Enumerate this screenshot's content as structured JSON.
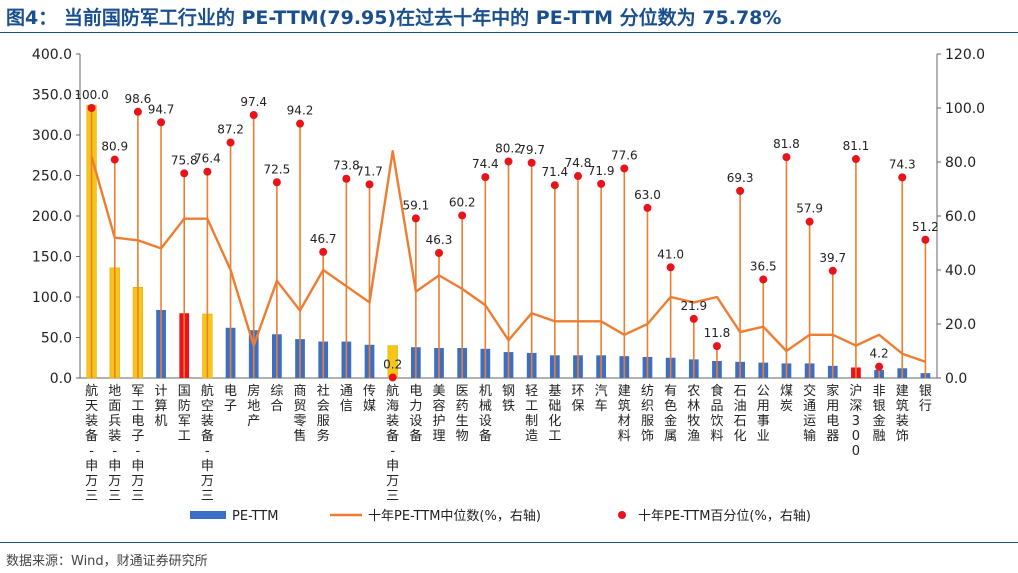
{
  "title": "图4： 当前国防军工行业的 PE-TTM(79.95)在过去十年中的 PE-TTM 分位数为 75.78%",
  "source": "数据来源：Wind，财通证券研究所",
  "colors": {
    "bar_default": "#3b6fc4",
    "bar_gold": "#f5c518",
    "bar_red": "#e8141a",
    "line": "#ed7d31",
    "dot": "#e8141a",
    "title": "#1a4f8f"
  },
  "chart_data": {
    "type": "bar",
    "categories": [
      "航天装备-申万三",
      "地面兵装-申万三",
      "军工电子-申万三",
      "计算机",
      "国防军工",
      "航空装备-申万三",
      "电子",
      "房地产",
      "综合",
      "商贸零售",
      "社会服务",
      "通信",
      "传媒",
      "航海装备-申万三",
      "电力设备",
      "美容护理",
      "医药生物",
      "机械设备",
      "钢铁",
      "轻工制造",
      "基础化工",
      "环保",
      "汽车",
      "建筑材料",
      "纺织服饰",
      "有色金属",
      "农林牧渔",
      "食品饮料",
      "石油石化",
      "公用事业",
      "煤炭",
      "交通运输",
      "家用电器",
      "沪深300",
      "非银金融",
      "建筑装饰",
      "银行"
    ],
    "bar_colors": [
      "gold",
      "gold",
      "gold",
      "default",
      "red",
      "gold",
      "default",
      "default",
      "default",
      "default",
      "default",
      "default",
      "default",
      "gold",
      "default",
      "default",
      "default",
      "default",
      "default",
      "default",
      "default",
      "default",
      "default",
      "default",
      "default",
      "default",
      "default",
      "default",
      "default",
      "default",
      "default",
      "default",
      "default",
      "red",
      "default",
      "default",
      "default"
    ],
    "series": [
      {
        "name": "PE-TTM",
        "axis": "left",
        "type": "bar",
        "values": [
          337,
          136,
          112,
          84,
          79.95,
          79,
          62,
          59,
          54,
          48,
          45,
          45,
          41,
          40,
          38,
          37,
          37,
          36,
          32,
          31,
          28,
          28,
          28,
          27,
          26,
          25,
          23,
          21,
          20,
          19,
          18,
          18,
          15,
          13,
          10,
          12,
          6
        ]
      },
      {
        "name": "十年PE-TTM中位数(%，右轴)",
        "axis": "right",
        "type": "line",
        "values": [
          82,
          52,
          51,
          48,
          59,
          59,
          40,
          12,
          36,
          25,
          40,
          34,
          28,
          84,
          32,
          38,
          33,
          27,
          14,
          24,
          21,
          21,
          21,
          16,
          20,
          30,
          28,
          30,
          17,
          19,
          10,
          16,
          16,
          12,
          16,
          9,
          6
        ]
      },
      {
        "name": "十年PE-TTM百分位(%，右轴)",
        "axis": "right",
        "type": "scatter",
        "values": [
          100.0,
          80.9,
          98.6,
          94.7,
          75.8,
          76.4,
          87.2,
          97.4,
          72.5,
          94.2,
          46.7,
          73.8,
          71.7,
          0.2,
          59.1,
          46.3,
          60.2,
          74.4,
          80.2,
          79.7,
          71.4,
          74.8,
          71.9,
          77.6,
          63.0,
          41.0,
          21.9,
          11.8,
          69.3,
          36.5,
          81.8,
          57.9,
          39.7,
          81.1,
          4.2,
          74.3,
          51.2
        ],
        "labels": [
          "100.0",
          "80.9",
          "98.6",
          "94.7",
          "75.8",
          "76.4",
          "87.2",
          "97.4",
          "72.5",
          "94.2",
          "46.7",
          "73.8",
          "71.7",
          "0.2",
          "59.1",
          "46.3",
          "60.2",
          "74.4",
          "80.2",
          "79.7",
          "71.4",
          "74.8",
          "71.9",
          "77.6",
          "63.0",
          "41.0",
          "21.9",
          "11.8",
          "69.3",
          "36.5",
          "81.8",
          "57.9",
          "39.7",
          "81.1",
          "4.2",
          "74.3",
          "51.2"
        ]
      }
    ],
    "yleft": {
      "min": 0,
      "max": 400,
      "ticks": [
        "0.0",
        "50.0",
        "100.0",
        "150.0",
        "200.0",
        "250.0",
        "300.0",
        "350.0",
        "400.0"
      ]
    },
    "yright": {
      "min": 0,
      "max": 120,
      "ticks": [
        "0.0",
        "20.0",
        "40.0",
        "60.0",
        "80.0",
        "100.0",
        "120.0"
      ]
    },
    "legend": {
      "position": "bottom",
      "items": [
        "PE-TTM",
        "十年PE-TTM中位数(%，右轴)",
        "十年PE-TTM百分位(%，右轴)"
      ]
    },
    "grid": false
  }
}
